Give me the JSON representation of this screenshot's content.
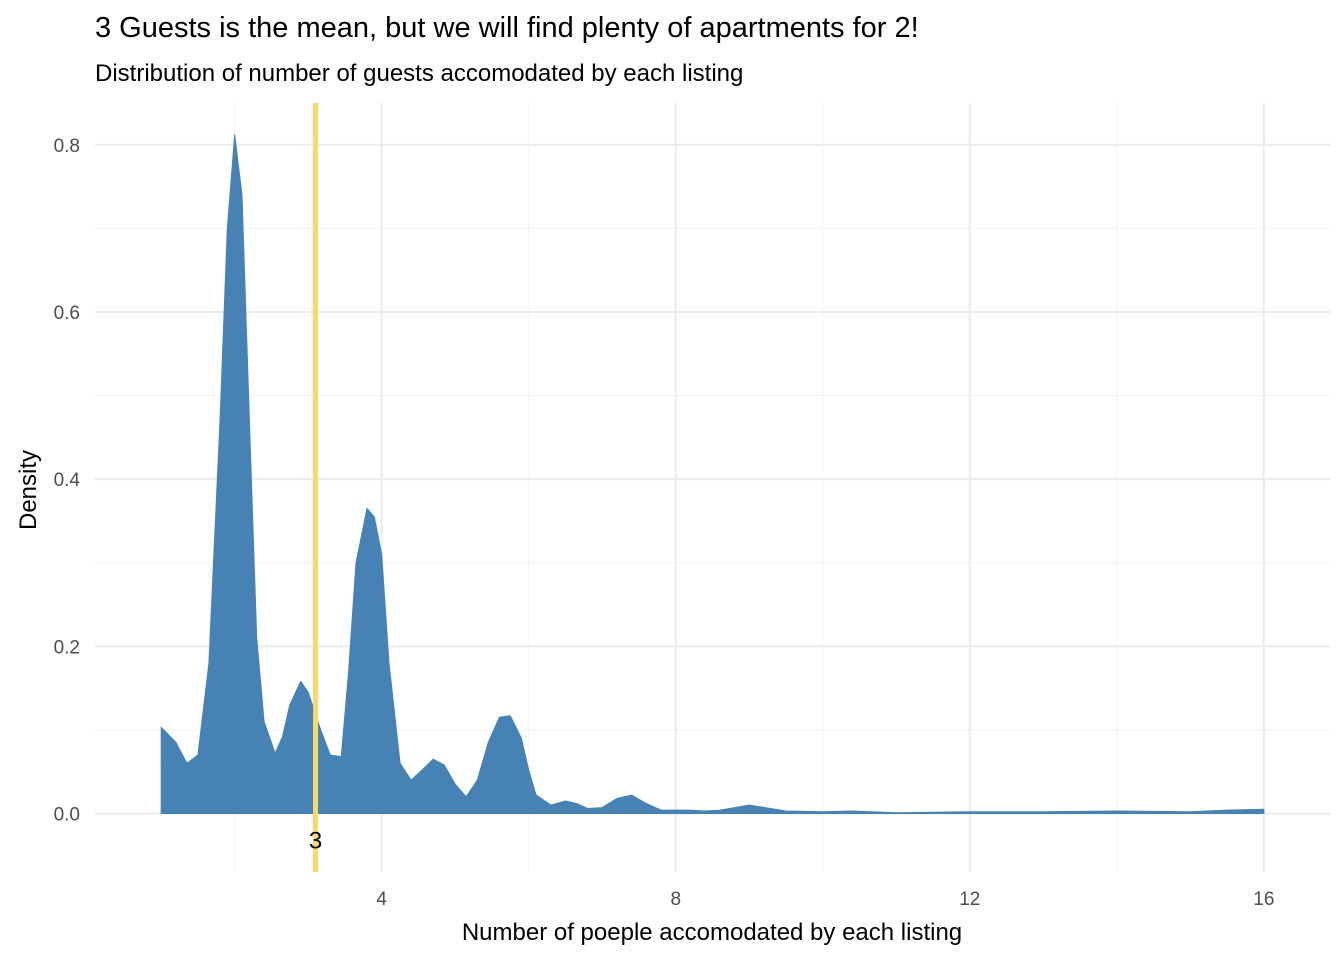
{
  "chart_data": {
    "type": "area",
    "title": "3 Guests is the mean, but we will find plenty of apartments for 2!",
    "subtitle": "Distribution of number of guests accomodated by each listing",
    "xlabel": "Number of poeple accomodated by each listing",
    "ylabel": "Density",
    "xlim": [
      0.1,
      16.9
    ],
    "ylim": [
      -0.07,
      0.85
    ],
    "x_ticks": [
      4,
      8,
      12,
      16
    ],
    "x_tick_labels": [
      "4",
      "8",
      "12",
      "16"
    ],
    "y_ticks": [
      0.0,
      0.2,
      0.4,
      0.6,
      0.8
    ],
    "y_tick_labels": [
      "0.0",
      "0.2",
      "0.4",
      "0.6",
      "0.8"
    ],
    "grid": true,
    "fill_color": "#4682b4",
    "series": [
      {
        "x": [
          1.0,
          1.2,
          1.35,
          1.5,
          1.65,
          1.8,
          1.9,
          2.0,
          2.1,
          2.2,
          2.3,
          2.4,
          2.55,
          2.65,
          2.75,
          2.9,
          3.0,
          3.05,
          3.15,
          3.3,
          3.45,
          3.55,
          3.65,
          3.8,
          3.9,
          4.0,
          4.1,
          4.25,
          4.4,
          4.55,
          4.7,
          4.85,
          5.0,
          5.15,
          5.3,
          5.45,
          5.6,
          5.75,
          5.9,
          6.0,
          6.1,
          6.3,
          6.5,
          6.65,
          6.8,
          7.0,
          7.2,
          7.4,
          7.6,
          7.8,
          8.0,
          8.2,
          8.4,
          8.6,
          9.0,
          9.5,
          10.0,
          10.4,
          11.0,
          12.0,
          13.0,
          14.0,
          15.0,
          15.5,
          16.0
        ],
        "y": [
          0.103,
          0.085,
          0.06,
          0.07,
          0.18,
          0.47,
          0.7,
          0.812,
          0.74,
          0.47,
          0.21,
          0.11,
          0.072,
          0.092,
          0.13,
          0.158,
          0.145,
          0.132,
          0.105,
          0.07,
          0.068,
          0.17,
          0.3,
          0.365,
          0.355,
          0.31,
          0.18,
          0.06,
          0.04,
          0.052,
          0.065,
          0.058,
          0.035,
          0.02,
          0.04,
          0.085,
          0.115,
          0.117,
          0.09,
          0.052,
          0.022,
          0.01,
          0.015,
          0.012,
          0.006,
          0.007,
          0.018,
          0.022,
          0.012,
          0.004,
          0.004,
          0.004,
          0.003,
          0.004,
          0.01,
          0.003,
          0.002,
          0.003,
          0.001,
          0.002,
          0.002,
          0.003,
          0.002,
          0.004,
          0.005
        ]
      }
    ],
    "mean_line": {
      "x": 3.1,
      "label": "3",
      "color": "#f8d96a"
    }
  }
}
